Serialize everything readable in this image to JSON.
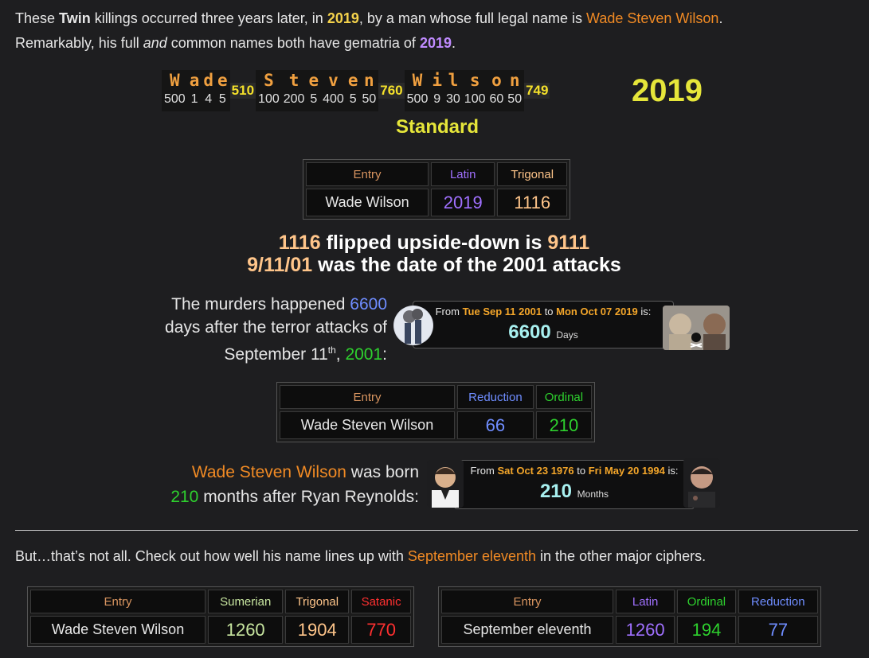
{
  "intro": {
    "p1": "These ",
    "twin": "Twin",
    "p2": " killings occurred three years later, in ",
    "year": "2019",
    "p3": ", by a man whose full legal name is ",
    "name": "Wade Steven Wilson",
    "p4": ".",
    "p5": "Remarkably, his full ",
    "and": "and",
    "p6": " common names both have gematria of ",
    "year2": "2019",
    "p7": "."
  },
  "gematria": {
    "words": [
      {
        "letters": [
          [
            "W",
            "500"
          ],
          [
            "a",
            "1"
          ],
          [
            "d",
            "4"
          ],
          [
            "e",
            "5"
          ]
        ],
        "sum": "510"
      },
      {
        "letters": [
          [
            "S",
            "100"
          ],
          [
            "t",
            "200"
          ],
          [
            "e",
            "5"
          ],
          [
            "v",
            "400"
          ],
          [
            "e",
            "5"
          ],
          [
            "n",
            "50"
          ]
        ],
        "sum": "760"
      },
      {
        "letters": [
          [
            "W",
            "500"
          ],
          [
            "i",
            "9"
          ],
          [
            "l",
            "30"
          ],
          [
            "s",
            "100"
          ],
          [
            "o",
            "60"
          ],
          [
            "n",
            "50"
          ]
        ],
        "sum": "749"
      }
    ],
    "total": "2019",
    "cipher": "Standard"
  },
  "table1": {
    "headers": [
      "Entry",
      "Latin",
      "Trigonal"
    ],
    "row": [
      "Wade Wilson",
      "2019",
      "1116"
    ]
  },
  "flip": {
    "a": "1116",
    "b": " flipped upside-down is ",
    "c": "9111",
    "d": "9/11/01",
    "e": " was the date of the 2001 attacks"
  },
  "murders": {
    "a": "The murders happened ",
    "b": "6600",
    "c": "days after the terror attacks of",
    "d": "September 11",
    "sup": "th",
    "e": ", ",
    "f": "2001",
    "g": ":"
  },
  "dc1": {
    "from": "From",
    "d1": "Tue Sep 11 2001",
    "to": "to",
    "d2": "Mon Oct 07 2019",
    "is": "is:",
    "value": "6600",
    "unit": "Days"
  },
  "table2": {
    "headers": [
      "Entry",
      "Reduction",
      "Ordinal"
    ],
    "row": [
      "Wade Steven Wilson",
      "66",
      "210"
    ]
  },
  "born": {
    "name": "Wade Steven Wilson",
    "a": " was born",
    "num": "210",
    "b": " months after Ryan Reynolds:"
  },
  "dc2": {
    "from": "From",
    "d1": "Sat Oct 23 1976",
    "to": "to",
    "d2": "Fri May 20 1994",
    "is": "is:",
    "value": "210",
    "unit": "Months"
  },
  "but": {
    "a": "But…that’s not all. Check out how well his name lines up with ",
    "b": "September eleventh",
    "c": " in the other major ciphers."
  },
  "table3": {
    "headers": [
      "Entry",
      "Sumerian",
      "Trigonal",
      "Satanic"
    ],
    "row": [
      "Wade Steven Wilson",
      "1260",
      "1904",
      "770"
    ]
  },
  "table4": {
    "headers": [
      "Entry",
      "Latin",
      "Ordinal",
      "Reduction"
    ],
    "row": [
      "September eleventh",
      "1260",
      "194",
      "77"
    ]
  },
  "colors": {
    "orange": "#f08a24",
    "yellow": "#f4d24b",
    "purple": "#c08bff",
    "latin": "#a070ff",
    "trigonal": "#ffc58a",
    "reduction": "#6f8dff",
    "ordinal": "#2ed12e",
    "sumerian": "#c8e6a0",
    "satanic": "#ff3030",
    "gematria_total": "#e6e63a"
  }
}
